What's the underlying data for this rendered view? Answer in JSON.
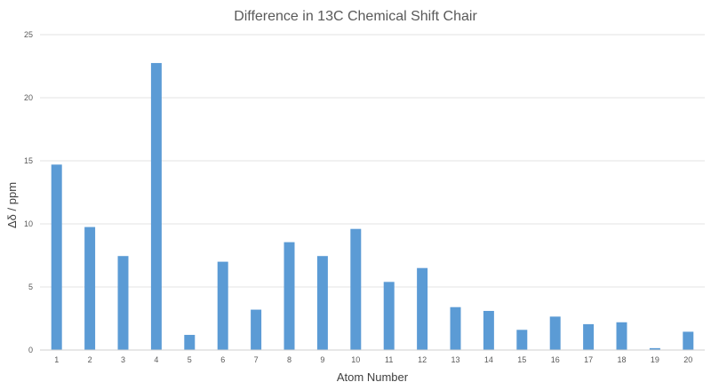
{
  "chart_data": {
    "type": "bar",
    "title": "Difference in 13C Chemical Shift Chair",
    "xlabel": "Atom Number",
    "ylabel": "Δδ / ppm",
    "categories": [
      "1",
      "2",
      "3",
      "4",
      "5",
      "6",
      "7",
      "8",
      "9",
      "10",
      "11",
      "12",
      "13",
      "14",
      "15",
      "16",
      "17",
      "18",
      "19",
      "20"
    ],
    "values": [
      14.7,
      9.75,
      7.45,
      22.75,
      1.2,
      7.0,
      3.2,
      8.55,
      7.45,
      9.6,
      5.4,
      6.5,
      3.4,
      3.1,
      1.6,
      2.65,
      2.05,
      2.2,
      0.15,
      1.45
    ],
    "ylim": [
      0,
      25
    ],
    "yticks": [
      0,
      5,
      10,
      15,
      20,
      25
    ],
    "grid": true,
    "legend": "none",
    "bar_color": "#5b9bd5"
  }
}
